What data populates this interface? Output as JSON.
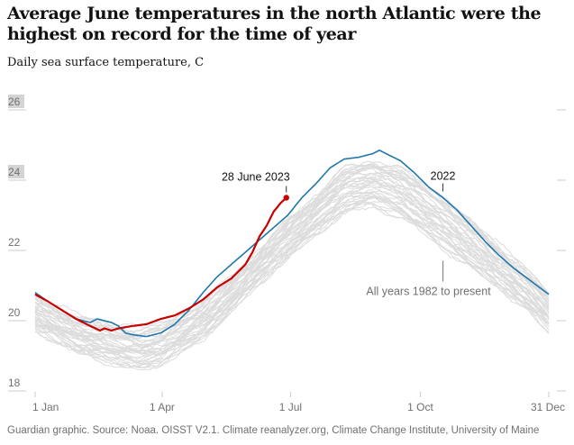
{
  "chart_data": {
    "type": "line",
    "title": "Average June temperatures in the north Atlantic were the highest on record for the time of year",
    "subtitle": "Daily sea surface temperature, C",
    "xlabel": "",
    "ylabel": "",
    "ylim": [
      18,
      26
    ],
    "xlim": [
      1,
      365
    ],
    "yticks": [
      {
        "value": 26,
        "label": "26",
        "highlight": true
      },
      {
        "value": 24,
        "label": "24",
        "highlight": true
      },
      {
        "value": 22,
        "label": "22",
        "highlight": false
      },
      {
        "value": 20,
        "label": "20",
        "highlight": false
      },
      {
        "value": 18,
        "label": "18",
        "highlight": false
      }
    ],
    "xticks": [
      {
        "day": 1,
        "label": "1 Jan"
      },
      {
        "day": 91,
        "label": "1 Apr"
      },
      {
        "day": 182,
        "label": "1 Jul"
      },
      {
        "day": 274,
        "label": "1 Oct"
      },
      {
        "day": 365,
        "label": "31 Dec"
      }
    ],
    "grid": false,
    "legend": "none",
    "colors": {
      "highlight_2023": "#c70000",
      "highlight_2022": "#1f77a9",
      "background_years": "#dcdcdc",
      "axis": "#cccccc",
      "label_highlight_bg": "#d4d4d4"
    },
    "series": [
      {
        "name": "2023",
        "color": "#c70000",
        "x": [
          1,
          10,
          20,
          30,
          40,
          47,
          50,
          55,
          60,
          70,
          80,
          90,
          100,
          105,
          110,
          120,
          130,
          140,
          150,
          155,
          160,
          165,
          170,
          175,
          179
        ],
        "y": [
          20.75,
          20.55,
          20.3,
          20.05,
          19.85,
          19.72,
          19.78,
          19.72,
          19.78,
          19.85,
          19.9,
          20.05,
          20.15,
          20.25,
          20.35,
          20.6,
          20.95,
          21.2,
          21.6,
          21.95,
          22.4,
          22.7,
          23.1,
          23.35,
          23.5
        ]
      },
      {
        "name": "2022",
        "color": "#1f77a9",
        "x": [
          1,
          10,
          20,
          30,
          40,
          45,
          55,
          60,
          65,
          70,
          80,
          90,
          100,
          110,
          120,
          130,
          140,
          150,
          160,
          170,
          180,
          190,
          200,
          210,
          220,
          230,
          240,
          245,
          250,
          260,
          270,
          280,
          290,
          300,
          310,
          320,
          330,
          340,
          350,
          360,
          365
        ],
        "y": [
          20.8,
          20.55,
          20.3,
          20.05,
          19.95,
          20.05,
          19.95,
          19.85,
          19.65,
          19.6,
          19.55,
          19.65,
          19.9,
          20.3,
          20.8,
          21.25,
          21.6,
          21.95,
          22.3,
          22.65,
          23.0,
          23.5,
          23.9,
          24.35,
          24.6,
          24.65,
          24.75,
          24.85,
          24.75,
          24.55,
          24.2,
          23.8,
          23.5,
          23.15,
          22.7,
          22.25,
          21.85,
          21.5,
          21.2,
          20.9,
          20.75
        ]
      },
      {
        "name": "All years 1982 to present",
        "color": "#dcdcdc",
        "band_note": "41 background years, approx envelope",
        "envelope_low": {
          "x": [
            1,
            30,
            60,
            75,
            90,
            120,
            150,
            182,
            220,
            240,
            260,
            290,
            320,
            350,
            365
          ],
          "y": [
            19.7,
            19.1,
            18.7,
            18.6,
            18.75,
            19.5,
            20.7,
            21.9,
            23.1,
            23.3,
            23.0,
            22.1,
            21.2,
            20.3,
            19.7
          ]
        },
        "envelope_high": {
          "x": [
            1,
            30,
            60,
            75,
            90,
            120,
            150,
            182,
            220,
            240,
            260,
            290,
            320,
            350,
            365
          ],
          "y": [
            20.7,
            20.15,
            19.85,
            19.75,
            19.85,
            20.5,
            21.6,
            22.9,
            24.3,
            24.55,
            24.3,
            23.5,
            22.5,
            21.4,
            20.8
          ]
        }
      }
    ],
    "annotations": [
      {
        "text": "28 June 2023",
        "series": "2023",
        "day": 179,
        "value": 23.5
      },
      {
        "text": "2022",
        "series": "2022",
        "day": 290,
        "value": 23.55
      },
      {
        "text": "All years 1982 to present",
        "series": "All years 1982 to present",
        "day": 290,
        "value": 21.5
      }
    ]
  },
  "footer": {
    "source": "Guardian graphic. Source: Noaa. OISST V2.1. Climate reanalyzer.org, Climate Change Institute, University of Maine"
  }
}
